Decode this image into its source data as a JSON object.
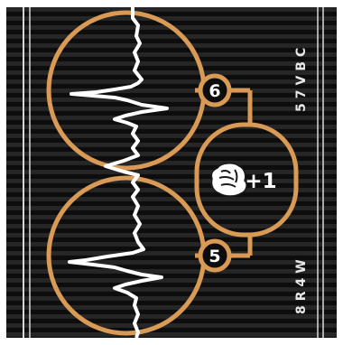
{
  "card": {
    "top_node_value": "6",
    "bottom_node_value": "5",
    "center_bonus": "+1",
    "center_icon": "fist-icon",
    "code_top": "57VBC",
    "code_bottom": "8R4W"
  },
  "colors": {
    "background": "#0c0c0c",
    "stripe": "#2a2a2a",
    "frame_line": "#d8d8d8",
    "circuit": "#d89a55",
    "signal": "#ffffff",
    "text": "#e8e8e8"
  }
}
